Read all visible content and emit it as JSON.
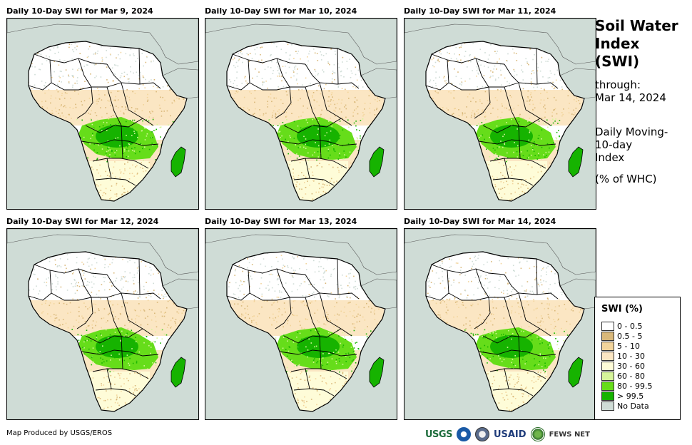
{
  "panels": [
    {
      "title": "Daily 10-Day SWI for Mar 9, 2024",
      "seed": 1
    },
    {
      "title": "Daily 10-Day SWI for Mar 10, 2024",
      "seed": 2
    },
    {
      "title": "Daily 10-Day SWI for Mar 11, 2024",
      "seed": 3
    },
    {
      "title": "Daily 10-Day SWI for Mar 12, 2024",
      "seed": 4
    },
    {
      "title": "Daily 10-Day SWI for Mar 13, 2024",
      "seed": 5
    },
    {
      "title": "Daily 10-Day SWI for Mar 14, 2024",
      "seed": 6
    }
  ],
  "side": {
    "title_line1": "Soil Water",
    "title_line2": "Index",
    "title_line3": "(SWI)",
    "through_label": "through:",
    "through_date": "Mar 14, 2024",
    "desc_line1": "Daily Moving-",
    "desc_line2": "10-day",
    "desc_line3": "Index",
    "unit": "(% of WHC)"
  },
  "legend": {
    "title": "SWI (%)",
    "items": [
      {
        "label": "0 - 0.5",
        "color": "#ffffff"
      },
      {
        "label": "0.5 - 5",
        "color": "#d9b87a"
      },
      {
        "label": "5 - 10",
        "color": "#f2d49b"
      },
      {
        "label": "10 - 30",
        "color": "#fbe6c3"
      },
      {
        "label": "30 - 60",
        "color": "#fefcd8"
      },
      {
        "label": "60 - 80",
        "color": "#d6f59a"
      },
      {
        "label": "80 - 99.5",
        "color": "#66dd1a"
      },
      {
        "label": "> 99.5",
        "color": "#16b300"
      },
      {
        "label": "No Data",
        "color": "#cfdcd6"
      }
    ]
  },
  "credit": "Map Produced by USGS/EROS",
  "logos": {
    "usgs": "USGS",
    "usaid": "USAID",
    "fews": "FEWS NET"
  }
}
